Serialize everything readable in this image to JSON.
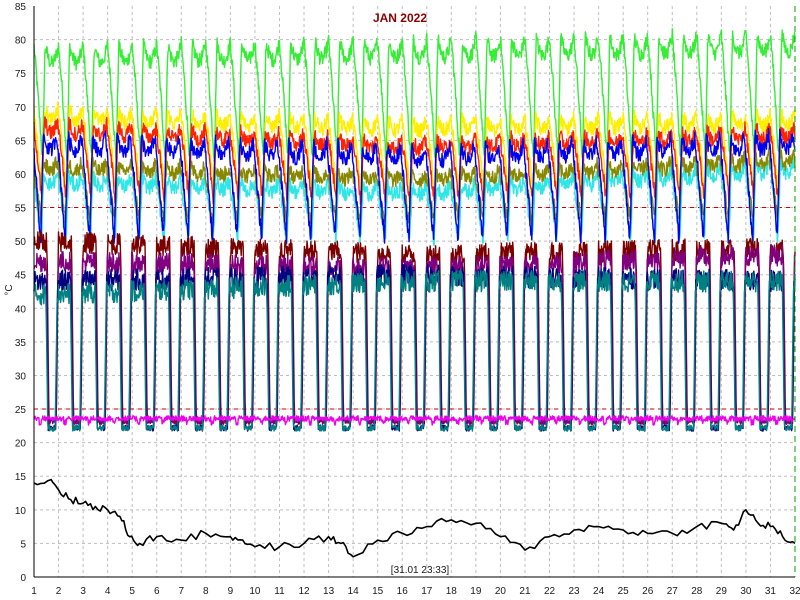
{
  "chart_data": {
    "type": "line",
    "title": "JAN 2022",
    "ylabel": "°C",
    "timestamp_label": "[31.01 23:33]",
    "xlim": [
      1,
      32
    ],
    "ylim": [
      0,
      85
    ],
    "x_ticks": [
      "1",
      "2",
      "3",
      "4",
      "5",
      "6",
      "7",
      "8",
      "9",
      "10",
      "11",
      "12",
      "13",
      "14",
      "15",
      "16",
      "17",
      "18",
      "19",
      "20",
      "21",
      "22",
      "23",
      "24",
      "25",
      "26",
      "27",
      "28",
      "29",
      "30",
      "31",
      "32"
    ],
    "y_ticks": [
      "0",
      "5",
      "10",
      "15",
      "20",
      "25",
      "30",
      "35",
      "40",
      "45",
      "50",
      "55",
      "60",
      "65",
      "70",
      "75",
      "80",
      "85"
    ],
    "grid": true,
    "reference_lines": [
      {
        "y": 25,
        "color": "#cc0000"
      },
      {
        "y": 55,
        "color": "#cc0000"
      }
    ],
    "colors": {
      "title": "#8b0000",
      "ylabel": "#8b0000",
      "timestamp": "#8b0000",
      "axis": "#000000",
      "grid": "#bfbfbf",
      "end_line": "#00a000"
    },
    "series": [
      {
        "color": "#33ee33",
        "style": "daily-cycle",
        "low": 62,
        "high": 79,
        "peak_trend": [
          79,
          80,
          81
        ],
        "swing": 0.6
      },
      {
        "color": "#ffee00",
        "style": "daily-cycle",
        "low": 57,
        "high": 69,
        "peak_trend": [
          70,
          68,
          69
        ]
      },
      {
        "color": "#ff2200",
        "style": "daily-cycle",
        "low": 56,
        "high": 67,
        "peak_trend": [
          68,
          65,
          67
        ]
      },
      {
        "color": "#2fe6e6",
        "style": "daily-cycle",
        "low": 50,
        "high": 61,
        "peak_trend": [
          60,
          58,
          62
        ]
      },
      {
        "color": "#888800",
        "style": "daily-cycle",
        "low": 53,
        "high": 62,
        "peak_trend": [
          62,
          60,
          63
        ]
      },
      {
        "color": "#0000ee",
        "style": "daily-cycle",
        "low": 50,
        "high": 66,
        "peak_trend": [
          66,
          64,
          66
        ]
      },
      {
        "color": "#7a0000",
        "style": "daily-drop",
        "high": 52,
        "low": 23,
        "drop_trend": [
          50,
          48,
          49
        ]
      },
      {
        "color": "#800080",
        "style": "daily-drop",
        "high": 49,
        "low": 23,
        "drop_trend": [
          47,
          46,
          48
        ]
      },
      {
        "color": "#000080",
        "style": "daily-drop",
        "high": 46,
        "low": 22,
        "drop_trend": [
          44,
          45,
          44
        ]
      },
      {
        "color": "#008080",
        "style": "daily-drop",
        "high": 45,
        "low": 22,
        "drop_trend": [
          42,
          44,
          44
        ]
      },
      {
        "color": "#ee00ee",
        "style": "flat",
        "level": 23.6
      },
      {
        "color": "#000000",
        "style": "outdoor",
        "x": [
          1,
          1.7,
          2,
          2.5,
          3,
          3.5,
          4,
          4.5,
          4.9,
          5.3,
          6,
          7,
          8,
          9,
          9.5,
          10,
          11,
          12,
          13,
          13.5,
          14,
          15,
          16,
          17,
          18,
          19,
          20,
          21,
          22,
          23,
          24,
          25,
          26,
          27,
          28,
          29,
          29.5,
          30,
          30.5,
          31,
          31.5,
          32
        ],
        "values": [
          14,
          14.5,
          13,
          11.5,
          11,
          10.5,
          10,
          9,
          6,
          5,
          6,
          5.5,
          6.5,
          6,
          5.5,
          4.5,
          4.5,
          5,
          6,
          5,
          3,
          5.5,
          6.5,
          7.5,
          8.5,
          8,
          6,
          4,
          6,
          7,
          7.5,
          7,
          6.5,
          6.5,
          7.5,
          8,
          7,
          10,
          8,
          7.5,
          6,
          5
        ]
      }
    ]
  }
}
